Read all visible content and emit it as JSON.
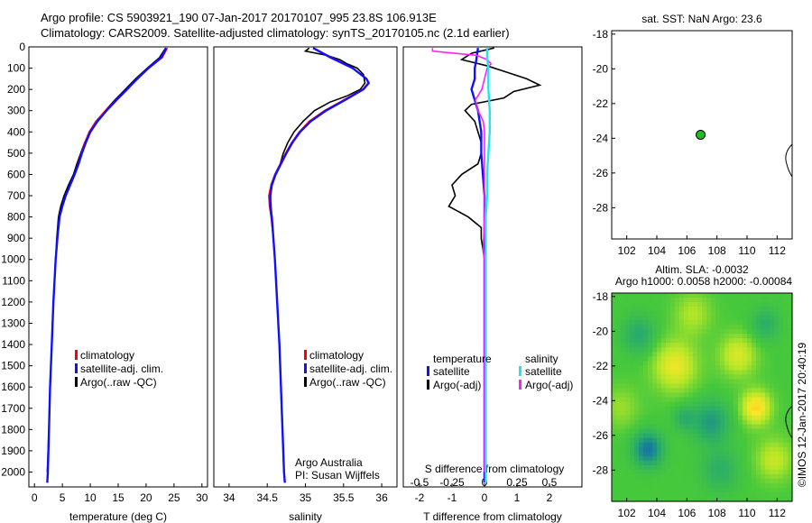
{
  "header": {
    "line1": "Argo profile: CS 5903921_190 07-Jan-2017 20170107_995 23.8S 106.913E",
    "line2": "Climatology: CARS2009. Satellite-adjusted climatology: synTS_20170105.nc (2.1d earlier)"
  },
  "side_label": "©IMOS 12-Jan-2017 20:40:19",
  "colors": {
    "climatology": "#ff0000",
    "satellite": "#1010ff",
    "argo": "#000000",
    "sal_sat": "#20e8e8",
    "sal_argo": "#ff20ff",
    "marker": "#22bb22"
  },
  "chart_data": [
    {
      "id": "temperature",
      "type": "line",
      "xlabel": "temperature (deg C)",
      "xlim": [
        -1,
        31
      ],
      "ylim": [
        2070,
        0
      ],
      "xticks": [
        0,
        5,
        10,
        15,
        20,
        25,
        30
      ],
      "xtick_labels": [
        "0",
        "5",
        "10",
        "15",
        "20",
        "25",
        "30"
      ],
      "yticks": [
        0,
        100,
        200,
        300,
        400,
        500,
        600,
        700,
        800,
        900,
        1000,
        1100,
        1200,
        1300,
        1400,
        1500,
        1600,
        1700,
        1800,
        1900,
        2000
      ],
      "legend": [
        "climatology",
        "satellite-adj. clim.",
        "Argo(..raw -QC)"
      ],
      "legend_keys": [
        "climatology",
        "satellite",
        "argo"
      ],
      "series": [
        {
          "key": "argo",
          "depth": [
            5,
            50,
            100,
            150,
            200,
            250,
            300,
            350,
            400,
            450,
            500,
            550,
            600,
            650,
            700,
            750,
            800,
            900,
            1000,
            1200,
            1400,
            1600,
            1800,
            2000
          ],
          "values": [
            23.5,
            22.4,
            20.2,
            18.1,
            16.3,
            14.4,
            12.7,
            11.2,
            10.0,
            9.0,
            8.3,
            7.6,
            7.0,
            6.1,
            5.3,
            4.7,
            4.3,
            4.0,
            3.8,
            3.4,
            3.1,
            2.8,
            2.6,
            2.3
          ]
        },
        {
          "key": "climatology",
          "depth": [
            5,
            50,
            100,
            150,
            200,
            250,
            300,
            350,
            400,
            450,
            500,
            550,
            600,
            650,
            700,
            750,
            800,
            900,
            1000,
            1200,
            1400,
            1600,
            1800,
            2000,
            2050
          ],
          "values": [
            23.8,
            22.9,
            20.5,
            18.5,
            16.6,
            14.6,
            12.7,
            11.0,
            9.8,
            9.0,
            8.4,
            7.8,
            7.2,
            6.4,
            5.6,
            5.0,
            4.5,
            4.1,
            3.8,
            3.4,
            3.1,
            2.8,
            2.6,
            2.4,
            2.3
          ]
        },
        {
          "key": "satellite",
          "depth": [
            5,
            50,
            100,
            150,
            200,
            250,
            300,
            350,
            400,
            450,
            500,
            550,
            600,
            650,
            700,
            750,
            800,
            900,
            1000,
            1200,
            1400,
            1600,
            1800,
            2000,
            2050
          ],
          "values": [
            23.6,
            22.7,
            20.4,
            18.4,
            16.6,
            14.7,
            12.9,
            11.3,
            10.0,
            9.2,
            8.5,
            7.9,
            7.2,
            6.4,
            5.6,
            5.0,
            4.5,
            4.1,
            3.8,
            3.4,
            3.1,
            2.8,
            2.6,
            2.4,
            2.3
          ]
        }
      ]
    },
    {
      "id": "salinity",
      "type": "line",
      "xlabel": "salinity",
      "xlim": [
        33.8,
        36.2
      ],
      "ylim": [
        2070,
        0
      ],
      "xticks": [
        34,
        34.5,
        35,
        35.5,
        36
      ],
      "xtick_labels": [
        "34",
        "34.5",
        "35",
        "35.5",
        "36"
      ],
      "legend": [
        "climatology",
        "satellite-adj. clim.",
        "Argo(..raw -QC)"
      ],
      "legend_keys": [
        "climatology",
        "satellite",
        "argo"
      ],
      "annotation": [
        "Argo Australia",
        "PI: Susan Wijffels"
      ],
      "series": [
        {
          "key": "argo",
          "depth": [
            5,
            20,
            40,
            60,
            80,
            100,
            130,
            170,
            200,
            230,
            260,
            300,
            350,
            400,
            450,
            500,
            550,
            600,
            650,
            700,
            750,
            800,
            900,
            1000,
            1200,
            1400,
            1600,
            1800,
            2000
          ],
          "values": [
            35.05,
            35.0,
            35.28,
            35.45,
            35.55,
            35.68,
            35.76,
            35.78,
            35.72,
            35.55,
            35.32,
            35.12,
            34.97,
            34.85,
            34.77,
            34.71,
            34.67,
            34.6,
            34.55,
            34.54,
            34.55,
            34.56,
            34.58,
            34.6,
            34.63,
            34.66,
            34.68,
            34.7,
            34.72
          ]
        },
        {
          "key": "climatology",
          "depth": [
            5,
            50,
            100,
            150,
            170,
            200,
            250,
            300,
            350,
            400,
            450,
            500,
            550,
            600,
            650,
            700,
            750,
            800,
            900,
            1000,
            1200,
            1400,
            1600,
            1800,
            2000,
            2050
          ],
          "values": [
            35.1,
            35.35,
            35.62,
            35.8,
            35.82,
            35.75,
            35.5,
            35.25,
            35.05,
            34.92,
            34.82,
            34.74,
            34.67,
            34.6,
            34.55,
            34.52,
            34.53,
            34.55,
            34.58,
            34.6,
            34.63,
            34.66,
            34.68,
            34.7,
            34.72,
            34.73
          ]
        },
        {
          "key": "satellite",
          "depth": [
            5,
            50,
            100,
            150,
            170,
            200,
            250,
            300,
            350,
            400,
            450,
            500,
            550,
            600,
            650,
            700,
            750,
            800,
            900,
            1000,
            1200,
            1400,
            1600,
            1800,
            2000,
            2050
          ],
          "values": [
            35.1,
            35.33,
            35.62,
            35.8,
            35.83,
            35.76,
            35.52,
            35.27,
            35.07,
            34.93,
            34.83,
            34.75,
            34.68,
            34.61,
            34.56,
            34.54,
            34.54,
            34.56,
            34.58,
            34.6,
            34.63,
            34.66,
            34.68,
            34.7,
            34.72,
            34.73
          ]
        }
      ]
    },
    {
      "id": "difference",
      "type": "line",
      "xlabel": "T difference from climatology",
      "xlabel_top": "S difference from climatology",
      "xlim": [
        -2.5,
        3
      ],
      "ylim": [
        2070,
        0
      ],
      "xticks": [
        -2,
        -1,
        0,
        1,
        2
      ],
      "xtick_labels": [
        "-2",
        "-1",
        "0",
        "1",
        "2"
      ],
      "s_ticks": [
        -0.5,
        -0.25,
        0,
        0.25,
        0.5
      ],
      "s_tick_labels": [
        "-0.5",
        "-0.25",
        "0",
        "0.25",
        "0.5"
      ],
      "legend_titles": [
        "temperature",
        "salinity"
      ],
      "legend_left": [
        "satellite",
        "Argo(-adj)"
      ],
      "legend_right": [
        "satellite",
        "Argo(-adj)"
      ],
      "series": [
        {
          "key": "argo",
          "depth": [
            5,
            30,
            60,
            90,
            120,
            150,
            180,
            210,
            240,
            270,
            300,
            350,
            400,
            450,
            500,
            550,
            600,
            650,
            700,
            750,
            800,
            850,
            900,
            1000,
            1200,
            1400,
            1600,
            1800,
            2000
          ],
          "values": [
            0.3,
            -0.4,
            -0.7,
            0.1,
            0.7,
            1.3,
            1.7,
            0.9,
            0.6,
            -0.4,
            -0.6,
            -0.3,
            -0.2,
            -0.1,
            -0.1,
            -0.2,
            -0.7,
            -1.0,
            -0.9,
            -1.1,
            -0.5,
            -0.1,
            -0.1,
            0.0,
            0.0,
            0.0,
            0.0,
            0.0,
            0.0
          ]
        },
        {
          "key": "satellite",
          "depth": [
            5,
            60,
            100,
            150,
            200,
            250,
            300,
            400,
            500,
            600,
            700,
            800,
            900,
            1000,
            1200,
            1500,
            1800,
            2050
          ],
          "values": [
            -0.2,
            -0.25,
            -0.3,
            -0.3,
            -0.4,
            -0.3,
            -0.2,
            -0.1,
            -0.1,
            -0.05,
            0.0,
            0.0,
            0.0,
            0.0,
            0.0,
            0.0,
            0.0,
            0.0
          ]
        },
        {
          "key": "sal_argo",
          "depth": [
            5,
            20,
            40,
            60,
            80,
            100,
            150,
            200,
            250,
            300,
            350,
            400,
            500,
            600,
            800,
            950,
            1000,
            1200,
            1500,
            1800,
            2000
          ],
          "values": [
            -0.4,
            -0.4,
            -0.06,
            0.02,
            0.05,
            0.02,
            0.0,
            -0.02,
            -0.07,
            -0.05,
            -0.01,
            0.0,
            0.0,
            0.0,
            0.0,
            -0.01,
            0.0,
            0.0,
            0.0,
            0.0,
            0.0
          ]
        },
        {
          "key": "sal_sat",
          "depth": [
            5,
            50,
            100,
            200,
            300,
            400,
            500,
            600,
            700,
            800,
            1000,
            1200,
            1500,
            1800,
            2050
          ],
          "values": [
            0.02,
            0.02,
            0.03,
            0.03,
            0.04,
            0.04,
            0.03,
            0.02,
            0.02,
            0.01,
            0.01,
            0.01,
            0.01,
            0.01,
            0.01
          ]
        }
      ]
    },
    {
      "id": "sst_map",
      "type": "scatter",
      "title": "sat. SST: NaN Argo: 23.6",
      "xlim": [
        101,
        113
      ],
      "ylim": [
        -29.8,
        -17.8
      ],
      "xticks": [
        102,
        104,
        106,
        108,
        110,
        112
      ],
      "yticks": [
        -18,
        -20,
        -22,
        -24,
        -26,
        -28
      ],
      "points": [
        {
          "x": 106.913,
          "y": -23.8
        }
      ]
    },
    {
      "id": "sla_map",
      "type": "heatmap",
      "title_line1": "Altim. SLA: -0.0032",
      "title_line2": "Argo h1000: 0.0058 h2000: -0.00084",
      "xlim": [
        101,
        113
      ],
      "ylim": [
        -29.8,
        -17.8
      ],
      "xticks": [
        102,
        104,
        106,
        108,
        110,
        112
      ],
      "yticks": [
        -18,
        -20,
        -22,
        -24,
        -26,
        -28
      ]
    }
  ]
}
